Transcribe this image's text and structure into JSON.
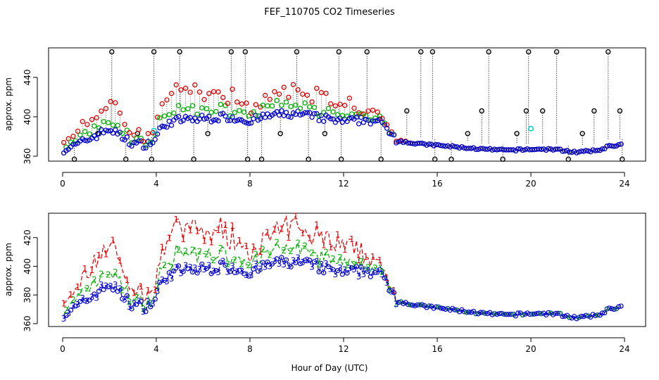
{
  "title": "FEF_110705  CO2 Timeseries",
  "xlabel": "Hour of Day (UTC)",
  "colors": {
    "ch1": "#e00000",
    "ch2": "#00b000",
    "ch3": "#0000d0",
    "ref": "#000000",
    "cyan": "#00d0d0"
  },
  "chart_data": [
    {
      "type": "scatter",
      "panel": "top",
      "title": "FEF_110705  CO2 Timeseries",
      "ylabel": "approx. ppm",
      "xlim": [
        -0.6,
        24.9
      ],
      "ylim": [
        355,
        470
      ],
      "xticks": [
        0,
        4,
        8,
        12,
        16,
        20,
        24
      ],
      "xtick_labels": [
        "0",
        "4",
        "8",
        "12",
        "16",
        "20",
        "24"
      ],
      "yticks": [
        360,
        400,
        440
      ],
      "ytick_labels": [
        "360",
        "400",
        "440"
      ],
      "series_profile": {
        "x": [
          0,
          0.5,
          1.0,
          1.5,
          2.0,
          2.5,
          3.0,
          3.5,
          3.9,
          4.3,
          5.0,
          6.0,
          7.0,
          8.0,
          9.0,
          10.0,
          11.0,
          12.0,
          12.5,
          13.0,
          13.5,
          14.0,
          14.3,
          15.0,
          16.0,
          17.0,
          18.0,
          19.0,
          20.0,
          21.0,
          22.0,
          22.9,
          23.3,
          23.9
        ],
        "ch3": [
          367,
          370,
          376,
          382,
          388,
          380,
          373,
          372,
          375,
          392,
          397,
          398,
          400,
          396,
          402,
          403,
          399,
          395,
          396,
          397,
          395,
          385,
          376,
          373,
          371,
          369,
          367,
          366,
          367,
          367,
          364,
          366,
          370,
          372
        ],
        "ch1_offset": [
          8,
          10,
          18,
          26,
          30,
          20,
          10,
          8,
          8,
          22,
          28,
          26,
          24,
          14,
          20,
          26,
          22,
          20,
          14,
          12,
          6,
          3,
          1,
          0,
          0,
          0,
          0,
          0,
          0,
          0,
          0,
          0,
          0,
          0
        ],
        "ch2_offset": [
          3,
          5,
          7,
          8,
          9,
          7,
          4,
          3,
          3,
          10,
          12,
          10,
          8,
          7,
          8,
          9,
          8,
          6,
          5,
          4,
          3,
          1,
          0,
          0,
          0,
          0,
          0,
          0,
          0,
          0,
          0,
          0,
          0,
          0
        ]
      },
      "ref_spikes": {
        "x": [
          0.5,
          1.5,
          2.1,
          2.7,
          3.2,
          3.8,
          3.9,
          5.0,
          5.6,
          6.2,
          7.2,
          7.8,
          7.9,
          8.5,
          9.3,
          10.0,
          10.5,
          11.2,
          11.8,
          11.9,
          13.0,
          13.6,
          14.7,
          15.3,
          15.8,
          15.9,
          16.6,
          17.3,
          17.9,
          18.2,
          18.8,
          19.4,
          19.8,
          19.9,
          20.5,
          21.1,
          21.6,
          22.2,
          22.7,
          23.3,
          23.8,
          23.9
        ],
        "y": [
          357,
          383,
          466,
          357,
          383,
          357,
          466,
          466,
          357,
          383,
          466,
          466,
          357,
          357,
          383,
          466,
          357,
          383,
          466,
          357,
          466,
          357,
          406,
          466,
          466,
          357,
          357,
          383,
          406,
          466,
          357,
          383,
          406,
          466,
          406,
          466,
          357,
          383,
          406,
          466,
          406,
          357
        ]
      },
      "cyan_points": {
        "x": [
          3.9,
          20.0
        ],
        "y": [
          386,
          388
        ]
      }
    },
    {
      "type": "line",
      "panel": "bottom",
      "ylabel": "approx. ppm",
      "xlabel": "Hour of Day (UTC)",
      "xlim": [
        -0.6,
        24.9
      ],
      "ylim": [
        358,
        437
      ],
      "xticks": [
        0,
        4,
        8,
        12,
        16,
        20,
        24
      ],
      "xtick_labels": [
        "0",
        "4",
        "8",
        "12",
        "16",
        "20",
        "24"
      ],
      "yticks": [
        360,
        380,
        400,
        420
      ],
      "ytick_labels": [
        "360",
        "380",
        "400",
        "420"
      ],
      "series_markers": [
        "1",
        "2",
        "3"
      ],
      "series_names": [
        "ch1",
        "ch2",
        "ch3"
      ],
      "note": "Uses the same underlying profile as the top panel; ch1 drawn as labelled line '1', ch2 as '2', ch3 as '3' with circles."
    }
  ]
}
